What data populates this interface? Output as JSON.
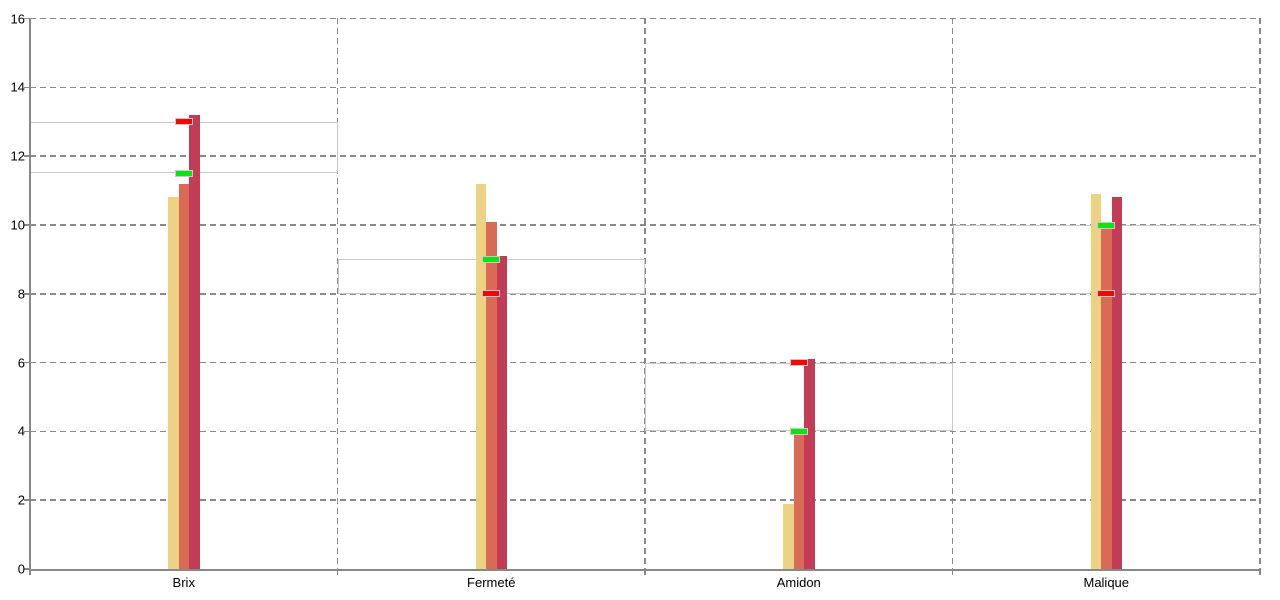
{
  "chart_data": {
    "type": "bar",
    "title": "",
    "categories": [
      "Brix",
      "Fermeté",
      "Amidon",
      "Malique"
    ],
    "series": [
      {
        "name": "bar-1-tan",
        "color": "#ecd283",
        "values": [
          10.8,
          11.2,
          1.9,
          10.9
        ]
      },
      {
        "name": "bar-2-salmon",
        "color": "#d96a54",
        "values": [
          11.2,
          10.1,
          4.0,
          10.1
        ]
      },
      {
        "name": "bar-3-crimson",
        "color": "#c23c55",
        "values": [
          13.2,
          9.1,
          6.1,
          10.8
        ]
      }
    ],
    "reference_markers": [
      {
        "name": "red-target",
        "color": "#f50505",
        "values": [
          13.0,
          8.0,
          6.0,
          8.0
        ]
      },
      {
        "name": "green-target",
        "color": "#0ce312",
        "values": [
          11.5,
          9.0,
          4.0,
          10.0
        ]
      }
    ],
    "reference_bands": [
      {
        "category": "Brix",
        "low": 11.5,
        "high": 13.0
      },
      {
        "category": "Fermeté",
        "low": 8.0,
        "high": 9.0
      },
      {
        "category": "Amidon",
        "low": 4.0,
        "high": 6.0
      },
      {
        "category": "Malique",
        "low": 8.0,
        "high": 10.0
      }
    ],
    "y_axis": {
      "min": 0,
      "max": 16,
      "step": 2,
      "tick_labels": [
        "0",
        "2",
        "4",
        "6",
        "8",
        "10",
        "12",
        "14",
        "16"
      ]
    },
    "x_axis": {
      "labels": [
        "Brix",
        "Fermeté",
        "Amidon",
        "Malique"
      ]
    },
    "grid": "dashed-gray",
    "legend": "none",
    "colors": {
      "background": "#ffffff",
      "gridline": "#8a8a8a",
      "axis": "#888888",
      "band_outline": "#c9c9c9",
      "text": "#000000"
    }
  }
}
